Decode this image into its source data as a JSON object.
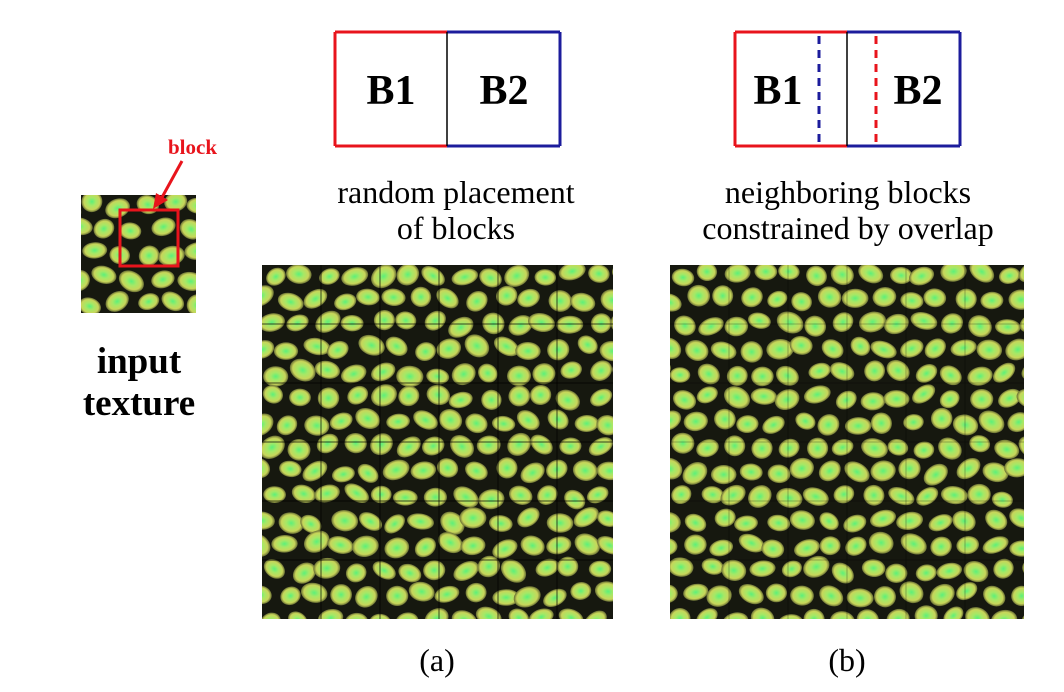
{
  "input": {
    "block_label": "block",
    "caption_line1": "input",
    "caption_line2": "texture"
  },
  "panel_a": {
    "b1": "B1",
    "b2": "B2",
    "caption_line1": "random placement",
    "caption_line2": "of blocks",
    "letter": "(a)"
  },
  "panel_b": {
    "b1": "B1",
    "b2": "B2",
    "caption_line1": "neighboring blocks",
    "caption_line2": "constrained by overlap",
    "letter": "(b)"
  },
  "colors": {
    "red": "#e8141c",
    "blue": "#1c1c9c",
    "texture_dark": "#16180f",
    "texture_cell": "#c8d65a",
    "texture_core": "#5cf07a"
  }
}
